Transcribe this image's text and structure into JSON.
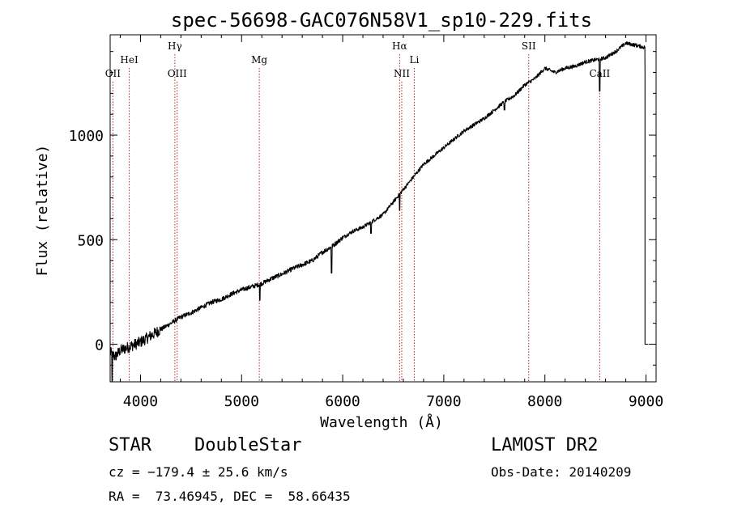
{
  "chart_data": {
    "type": "line",
    "title": "spec-56698-GAC076N58V1_sp10-229.fits",
    "xlabel": "Wavelength (Å)",
    "ylabel": "Flux (relative)",
    "xlim": [
      3700,
      9100
    ],
    "ylim": [
      -180,
      1480
    ],
    "x_ticks": [
      4000,
      5000,
      6000,
      7000,
      8000,
      9000
    ],
    "x_tick_labels": [
      "4000",
      "5000",
      "6000",
      "7000",
      "8000",
      "9000"
    ],
    "y_ticks": [
      0,
      500,
      1000
    ],
    "y_tick_labels": [
      "0",
      "500",
      "1000"
    ],
    "line_color": "#000000",
    "marker_color": "#b22222",
    "spectrum_anchors": {
      "x": [
        3700,
        3750,
        3800,
        3900,
        4000,
        4100,
        4200,
        4300,
        4400,
        4500,
        4600,
        4700,
        4800,
        4900,
        5000,
        5100,
        5200,
        5300,
        5400,
        5500,
        5600,
        5700,
        5800,
        5900,
        6000,
        6100,
        6200,
        6300,
        6400,
        6500,
        6600,
        6700,
        6800,
        6900,
        7000,
        7100,
        7200,
        7300,
        7400,
        7500,
        7600,
        7700,
        7800,
        7900,
        8000,
        8100,
        8200,
        8300,
        8400,
        8500,
        8600,
        8700,
        8800,
        8900,
        8980
      ],
      "y": [
        -40,
        -60,
        -30,
        -10,
        10,
        40,
        70,
        100,
        130,
        150,
        175,
        200,
        215,
        240,
        260,
        275,
        290,
        315,
        335,
        360,
        380,
        400,
        440,
        470,
        510,
        540,
        560,
        590,
        620,
        680,
        740,
        800,
        860,
        900,
        940,
        980,
        1020,
        1050,
        1080,
        1120,
        1160,
        1190,
        1240,
        1270,
        1320,
        1300,
        1320,
        1330,
        1350,
        1360,
        1370,
        1400,
        1440,
        1430,
        1420
      ]
    },
    "spectrum_dips": [
      {
        "x": 3720,
        "y": -180
      },
      {
        "x": 5180,
        "y": 210
      },
      {
        "x": 5890,
        "y": 340
      },
      {
        "x": 6280,
        "y": 530
      },
      {
        "x": 6563,
        "y": 640
      },
      {
        "x": 7600,
        "y": 1120
      },
      {
        "x": 8542,
        "y": 1210
      }
    ],
    "spectrum_edge": {
      "x": 8990,
      "y_high": 1300,
      "y_low": 0
    },
    "lines": [
      {
        "label": "OII",
        "x": 3727,
        "row": "low"
      },
      {
        "label": "HeI",
        "x": 3889,
        "row": "mid"
      },
      {
        "label": "Hγ",
        "x": 4340,
        "row": "high"
      },
      {
        "label": "OIII",
        "x": 4363,
        "row": "low"
      },
      {
        "label": "Mg",
        "x": 5175,
        "row": "mid"
      },
      {
        "label": "Hα",
        "x": 6563,
        "row": "high"
      },
      {
        "label": "NII",
        "x": 6584,
        "row": "low"
      },
      {
        "label": "Li",
        "x": 6708,
        "row": "mid"
      },
      {
        "label": "SII",
        "x": 7840,
        "row": "high"
      },
      {
        "label": "CaII",
        "x": 8542,
        "row": "low"
      }
    ]
  },
  "info": {
    "class": "STAR",
    "subclass": "DoubleStar",
    "survey": "LAMOST DR2",
    "cz": "cz = −179.4 ± 25.6 km/s",
    "obs_date": "Obs-Date: 20140209",
    "coords": "RA =  73.46945, DEC =  58.66435"
  }
}
